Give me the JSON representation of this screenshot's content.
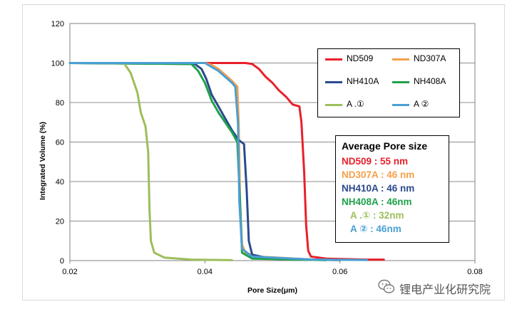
{
  "chart_data": {
    "type": "line",
    "title": "",
    "xlabel": "Pore Size(μm)",
    "ylabel": "Integrated Volume (%)",
    "xlim": [
      0.02,
      0.08
    ],
    "ylim": [
      0,
      120
    ],
    "xticks": [
      0.02,
      0.04,
      0.06,
      0.08
    ],
    "xtick_labels": [
      "0.02",
      "0.04",
      "0.06",
      "0.08"
    ],
    "yticks": [
      0,
      20,
      40,
      60,
      80,
      100,
      120
    ],
    "ytick_labels": [
      "0",
      "20",
      "40",
      "60",
      "80",
      "100",
      "120"
    ],
    "grid": "horizontal",
    "legend_position": "top-right",
    "series": [
      {
        "name": "ND509",
        "color": "#e8202a",
        "points": [
          [
            0.02,
            100
          ],
          [
            0.046,
            100
          ],
          [
            0.047,
            99.5
          ],
          [
            0.048,
            97
          ],
          [
            0.049,
            93
          ],
          [
            0.05,
            90
          ],
          [
            0.051,
            86
          ],
          [
            0.052,
            83
          ],
          [
            0.053,
            79
          ],
          [
            0.054,
            78
          ],
          [
            0.0543,
            70
          ],
          [
            0.0547,
            45
          ],
          [
            0.055,
            18
          ],
          [
            0.0553,
            5
          ],
          [
            0.0557,
            2
          ],
          [
            0.058,
            1
          ],
          [
            0.064,
            0.5
          ],
          [
            0.0665,
            0.5
          ]
        ]
      },
      {
        "name": "ND307A",
        "color": "#f5a04a",
        "points": [
          [
            0.02,
            100
          ],
          [
            0.04,
            100
          ],
          [
            0.041,
            99
          ],
          [
            0.042,
            97
          ],
          [
            0.043,
            94
          ],
          [
            0.044,
            91
          ],
          [
            0.0448,
            88
          ],
          [
            0.045,
            70
          ],
          [
            0.0452,
            30
          ],
          [
            0.0455,
            8
          ],
          [
            0.046,
            4
          ],
          [
            0.048,
            2
          ],
          [
            0.056,
            0.5
          ],
          [
            0.06,
            0.3
          ]
        ]
      },
      {
        "name": "NH410A",
        "color": "#2a4a8c",
        "points": [
          [
            0.02,
            100
          ],
          [
            0.0385,
            99.5
          ],
          [
            0.0395,
            97
          ],
          [
            0.0402,
            92
          ],
          [
            0.041,
            84
          ],
          [
            0.042,
            78
          ],
          [
            0.043,
            72
          ],
          [
            0.044,
            66
          ],
          [
            0.045,
            61
          ],
          [
            0.0458,
            59
          ],
          [
            0.0462,
            35
          ],
          [
            0.0465,
            10
          ],
          [
            0.047,
            3
          ],
          [
            0.049,
            1.5
          ],
          [
            0.056,
            0.5
          ],
          [
            0.06,
            0.3
          ]
        ]
      },
      {
        "name": "NH408A",
        "color": "#1fa14a",
        "points": [
          [
            0.02,
            100
          ],
          [
            0.038,
            99.5
          ],
          [
            0.039,
            96
          ],
          [
            0.04,
            90
          ],
          [
            0.041,
            81
          ],
          [
            0.042,
            75
          ],
          [
            0.043,
            70
          ],
          [
            0.044,
            65
          ],
          [
            0.0448,
            60
          ],
          [
            0.0452,
            30
          ],
          [
            0.0455,
            4
          ],
          [
            0.047,
            1
          ],
          [
            0.054,
            0.5
          ],
          [
            0.058,
            0.2
          ]
        ]
      },
      {
        "name": "A .①",
        "color": "#9cbe5a",
        "points": [
          [
            0.02,
            100
          ],
          [
            0.028,
            100
          ],
          [
            0.029,
            95
          ],
          [
            0.03,
            85
          ],
          [
            0.0305,
            75
          ],
          [
            0.0312,
            68
          ],
          [
            0.0316,
            55
          ],
          [
            0.0318,
            25
          ],
          [
            0.032,
            10
          ],
          [
            0.0325,
            4
          ],
          [
            0.034,
            1.5
          ],
          [
            0.038,
            0.5
          ],
          [
            0.044,
            0.2
          ]
        ]
      },
      {
        "name": "A ②",
        "color": "#4a9fd4",
        "points": [
          [
            0.02,
            100
          ],
          [
            0.04,
            100
          ],
          [
            0.041,
            98
          ],
          [
            0.042,
            96
          ],
          [
            0.043,
            93
          ],
          [
            0.044,
            90
          ],
          [
            0.0445,
            88
          ],
          [
            0.0449,
            70
          ],
          [
            0.0451,
            30
          ],
          [
            0.0455,
            6
          ],
          [
            0.047,
            2
          ],
          [
            0.056,
            0.5
          ],
          [
            0.064,
            0.3
          ]
        ]
      }
    ]
  },
  "legend": {
    "items": [
      {
        "label": "ND509",
        "color": "#e8202a"
      },
      {
        "label": "ND307A",
        "color": "#f5a04a"
      },
      {
        "label": "NH410A",
        "color": "#2a4a8c"
      },
      {
        "label": "NH408A",
        "color": "#1fa14a"
      },
      {
        "label": "A .①",
        "color": "#9cbe5a"
      },
      {
        "label": "A ②",
        "color": "#4a9fd4"
      }
    ]
  },
  "pore_box": {
    "title": "Average Pore size",
    "rows": [
      {
        "text": "ND509 : 55 nm",
        "color": "#e8202a"
      },
      {
        "text": "ND307A : 46 nm",
        "color": "#f5a04a"
      },
      {
        "text": "NH410A : 46 nm",
        "color": "#2a4a8c"
      },
      {
        "text": "NH408A : 46nm",
        "color": "#1fa14a"
      },
      {
        "text": "A .① : 32nm",
        "color": "#9cbe5a"
      },
      {
        "text": "A ② : 46nm",
        "color": "#4a9fd4"
      }
    ]
  },
  "watermark": {
    "icon": "wechat-icon",
    "text": "锂电产业化研究院"
  }
}
